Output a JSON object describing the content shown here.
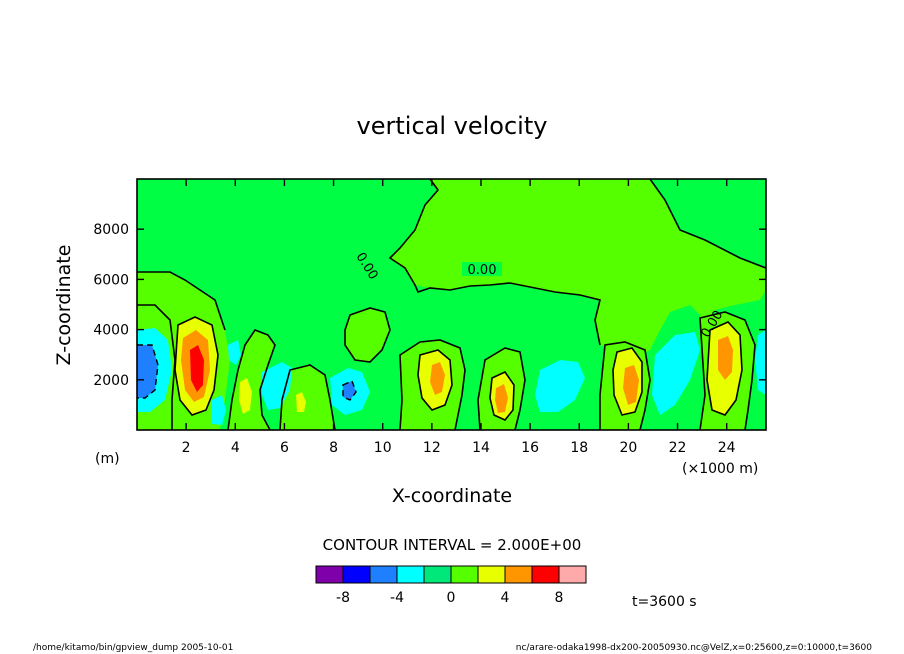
{
  "chart_data": {
    "type": "heatmap",
    "title": "vertical velocity",
    "xlabel": "X-coordinate",
    "ylabel": "Z-coordinate",
    "x_unit": "(×1000 m)",
    "y_unit": "(m)",
    "xlim": [
      0,
      25.6
    ],
    "ylim": [
      0,
      10000
    ],
    "x_ticks": [
      2,
      4,
      6,
      8,
      10,
      12,
      14,
      16,
      18,
      20,
      22,
      24
    ],
    "y_ticks": [
      2000,
      4000,
      6000,
      8000
    ],
    "contour_interval_text": "CONTOUR INTERVAL = 2.000E+00",
    "contour_labels": [
      "0.00",
      "0.00",
      "0.00"
    ],
    "colorbar": {
      "levels": [
        -10,
        -8,
        -6,
        -4,
        -2,
        0,
        2,
        4,
        6,
        8,
        10
      ],
      "tick_labels": [
        "-8",
        "-4",
        "0",
        "4",
        "8"
      ],
      "tick_values": [
        -8,
        -4,
        0,
        4,
        8
      ],
      "colors": [
        "#7f00aa",
        "#0000ff",
        "#1e80ff",
        "#00ffff",
        "#00e87a",
        "#55ff00",
        "#e8ff00",
        "#ff9600",
        "#ff0000",
        "#ffaaaa"
      ]
    },
    "features": [
      {
        "x": 0.5,
        "z": 2300,
        "value": -6
      },
      {
        "x": 2.5,
        "z": 2700,
        "value": 8
      },
      {
        "x": 5.0,
        "z": 1500,
        "value": 3
      },
      {
        "x": 9.0,
        "z": 1500,
        "value": -5
      },
      {
        "x": 12.3,
        "z": 2000,
        "value": 5
      },
      {
        "x": 14.8,
        "z": 1200,
        "value": 5
      },
      {
        "x": 20.0,
        "z": 1800,
        "value": 5
      },
      {
        "x": 23.9,
        "z": 3000,
        "value": 6
      }
    ]
  },
  "time_label": "t=3600 s",
  "footer": {
    "left": "/home/kitamo/bin/gpview_dump  2005-10-01",
    "right": "nc/arare-odaka1998-dx200-20050930.nc@VelZ,x=0:25600,z=0:10000,t=3600"
  }
}
